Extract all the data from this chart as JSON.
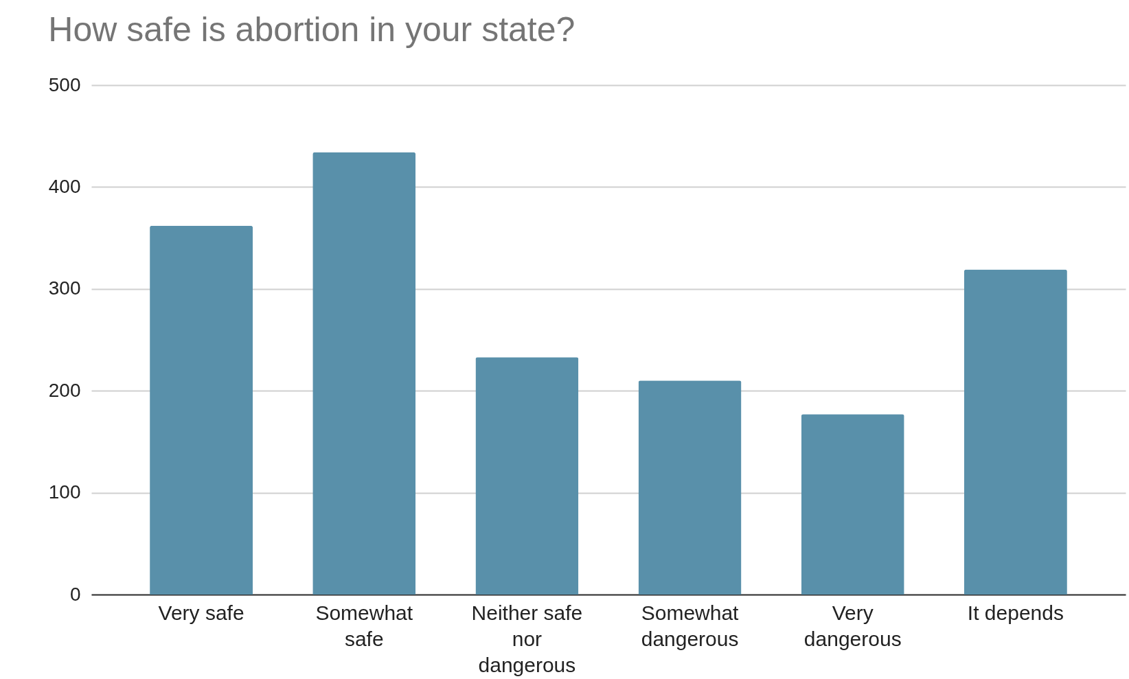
{
  "chart_data": {
    "type": "bar",
    "title": "How safe is abortion in your state?",
    "categories": [
      "Very safe",
      "Somewhat safe",
      "Neither safe nor dangerous",
      "Somewhat dangerous",
      "Very dangerous",
      "It depends"
    ],
    "values": [
      362,
      434,
      233,
      210,
      177,
      319
    ],
    "color": "#5990aa",
    "ylim": [
      0,
      500
    ],
    "yticks": [
      0,
      100,
      200,
      300,
      400,
      500
    ],
    "grid": "y"
  }
}
